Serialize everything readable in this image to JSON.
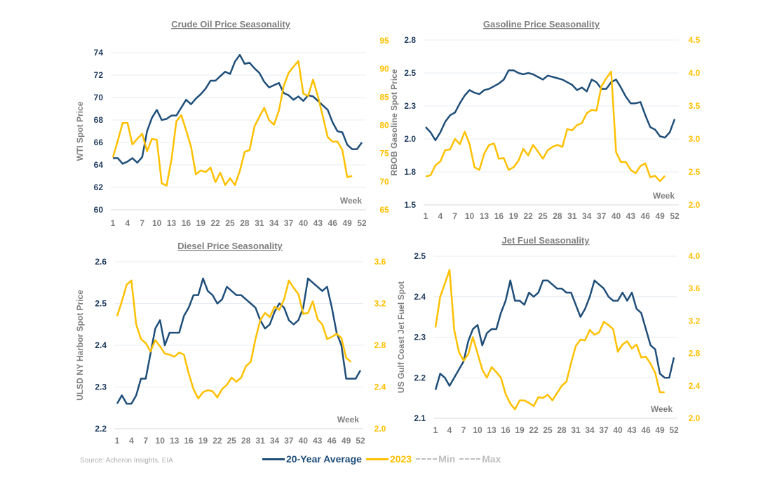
{
  "footer": {
    "source": "Source: Acheron Insights, EIA"
  },
  "legend": [
    {
      "label": "20-Year Average",
      "color": "#1f4e79",
      "style": "solid"
    },
    {
      "label": "2023",
      "color": "#ffc000",
      "style": "solid"
    },
    {
      "label": "Min",
      "color": "#bfbfbf",
      "style": "dashed"
    },
    {
      "label": "Max",
      "color": "#bfbfbf",
      "style": "dashed"
    }
  ],
  "chart_data": [
    {
      "type": "line",
      "title": "Crude Oil Price Seasonality",
      "ylabel": "WTI Spot Price",
      "ylabel_right": "",
      "xlabel": "Week",
      "x_ticks": [
        "1",
        "4",
        "7",
        "10",
        "13",
        "16",
        "19",
        "22",
        "25",
        "28",
        "31",
        "34",
        "37",
        "40",
        "43",
        "46",
        "49",
        "52"
      ],
      "ylim": [
        60,
        74
      ],
      "y_ticks": [
        "60",
        "62",
        "64",
        "66",
        "68",
        "70",
        "72",
        "74"
      ],
      "y_tick_values": [
        60,
        62,
        64,
        66,
        68,
        70,
        72,
        74
      ],
      "ylim_right": [
        65,
        95
      ],
      "y_ticks_right": [
        "65",
        "70",
        "75",
        "80",
        "85",
        "90",
        "95"
      ],
      "y_tick_values_right": [
        65,
        70,
        75,
        80,
        85,
        90,
        95
      ],
      "grid": true,
      "series": [
        {
          "name": "20-Year Average",
          "axis": "left",
          "values": [
            64.6,
            64.6,
            64.1,
            64.3,
            64.6,
            64.2,
            64.7,
            67.0,
            68.2,
            68.9,
            68.0,
            68.1,
            68.4,
            68.4,
            69.1,
            69.8,
            69.4,
            69.9,
            70.3,
            70.8,
            71.5,
            71.5,
            71.9,
            72.3,
            72.1,
            73.2,
            73.8,
            73.0,
            73.1,
            72.6,
            72.2,
            71.4,
            70.9,
            71.1,
            71.3,
            70.4,
            70.2,
            69.8,
            70.1,
            69.7,
            70.2,
            70.1,
            69.7,
            69.3,
            68.9,
            67.8,
            67.0,
            66.9,
            65.8,
            65.4,
            65.4,
            66.0
          ]
        },
        {
          "name": "2023",
          "axis": "right",
          "values": [
            74.3,
            77.3,
            80.4,
            80.4,
            76.6,
            77.6,
            78.5,
            75.4,
            77.6,
            77.4,
            69.7,
            69.3,
            73.9,
            80.7,
            81.8,
            79.1,
            76.2,
            71.3,
            72.0,
            71.7,
            72.5,
            69.9,
            71.6,
            69.4,
            70.6,
            69.4,
            71.9,
            75.3,
            75.6,
            79.8,
            81.5,
            83.1,
            80.9,
            80.1,
            82.6,
            87.0,
            89.3,
            90.4,
            91.4,
            85.6,
            85.2,
            88.1,
            85.1,
            81.6,
            77.9,
            77.1,
            77.1,
            75.6,
            70.8,
            71.0
          ]
        }
      ]
    },
    {
      "type": "line",
      "title": "Gasoline Price Seasonality",
      "ylabel": "RBOB Gasoline Spot Price",
      "ylabel_right": "",
      "xlabel": "Week",
      "x_ticks": [
        "1",
        "4",
        "7",
        "10",
        "13",
        "16",
        "19",
        "22",
        "25",
        "28",
        "31",
        "34",
        "37",
        "40",
        "43",
        "46",
        "49",
        "52"
      ],
      "ylim": [
        1.5,
        2.75
      ],
      "y_ticks": [
        "1.5",
        "1.8",
        "2.0",
        "2.3",
        "2.5",
        "2.8"
      ],
      "y_tick_values": [
        1.5,
        1.75,
        2.0,
        2.25,
        2.5,
        2.75
      ],
      "ylim_right": [
        2.0,
        4.5
      ],
      "y_ticks_right": [
        "2.0",
        "2.5",
        "3.0",
        "3.5",
        "4.0",
        "4.5"
      ],
      "y_tick_values_right": [
        2.0,
        2.5,
        3.0,
        3.5,
        4.0,
        4.5
      ],
      "grid": true,
      "series": [
        {
          "name": "20-Year Average",
          "axis": "left",
          "values": [
            2.09,
            2.05,
            1.99,
            2.05,
            2.13,
            2.18,
            2.2,
            2.27,
            2.33,
            2.37,
            2.35,
            2.34,
            2.37,
            2.38,
            2.4,
            2.42,
            2.45,
            2.52,
            2.52,
            2.5,
            2.49,
            2.5,
            2.49,
            2.47,
            2.45,
            2.48,
            2.47,
            2.46,
            2.45,
            2.43,
            2.41,
            2.37,
            2.39,
            2.36,
            2.45,
            2.43,
            2.38,
            2.38,
            2.43,
            2.45,
            2.39,
            2.32,
            2.27,
            2.27,
            2.28,
            2.18,
            2.09,
            2.07,
            2.02,
            2.01,
            2.05,
            2.15
          ]
        },
        {
          "name": "2023",
          "axis": "right",
          "values": [
            2.43,
            2.45,
            2.6,
            2.66,
            2.83,
            2.84,
            3.0,
            2.92,
            3.11,
            2.92,
            2.57,
            2.53,
            2.78,
            2.91,
            2.93,
            2.7,
            2.71,
            2.53,
            2.57,
            2.67,
            2.85,
            2.75,
            2.91,
            2.81,
            2.7,
            2.83,
            2.88,
            2.91,
            2.88,
            3.15,
            3.13,
            3.21,
            3.24,
            3.39,
            3.44,
            3.43,
            3.8,
            3.92,
            4.02,
            2.8,
            2.65,
            2.65,
            2.53,
            2.48,
            2.59,
            2.63,
            2.42,
            2.44,
            2.36,
            2.44
          ]
        }
      ]
    },
    {
      "type": "line",
      "title": "Diesel Price Seasonality",
      "ylabel": "ULSD NY Harbor Spot Price",
      "ylabel_right": "",
      "xlabel": "Week",
      "x_ticks": [
        "1",
        "4",
        "7",
        "10",
        "13",
        "16",
        "19",
        "22",
        "25",
        "28",
        "31",
        "34",
        "37",
        "40",
        "43",
        "46",
        "49",
        "52"
      ],
      "ylim": [
        2.2,
        2.6
      ],
      "y_ticks": [
        "2.2",
        "2.3",
        "2.4",
        "2.5",
        "2.6"
      ],
      "y_tick_values": [
        2.2,
        2.3,
        2.4,
        2.5,
        2.6
      ],
      "ylim_right": [
        2.0,
        3.6
      ],
      "y_ticks_right": [
        "2.0",
        "2.4",
        "2.8",
        "3.2",
        "3.6"
      ],
      "y_tick_values_right": [
        2.0,
        2.4,
        2.8,
        3.2,
        3.6
      ],
      "grid": true,
      "series": [
        {
          "name": "20-Year Average",
          "axis": "left",
          "values": [
            2.26,
            2.28,
            2.26,
            2.26,
            2.28,
            2.32,
            2.32,
            2.38,
            2.44,
            2.46,
            2.4,
            2.43,
            2.43,
            2.43,
            2.47,
            2.49,
            2.52,
            2.52,
            2.56,
            2.53,
            2.52,
            2.5,
            2.51,
            2.54,
            2.53,
            2.52,
            2.52,
            2.51,
            2.5,
            2.49,
            2.46,
            2.44,
            2.45,
            2.48,
            2.5,
            2.49,
            2.46,
            2.45,
            2.46,
            2.49,
            2.56,
            2.55,
            2.54,
            2.53,
            2.54,
            2.49,
            2.43,
            2.4,
            2.32,
            2.32,
            2.32,
            2.34
          ]
        },
        {
          "name": "2023",
          "axis": "right",
          "values": [
            3.08,
            3.22,
            3.38,
            3.42,
            3.0,
            2.86,
            2.82,
            2.74,
            2.85,
            2.79,
            2.72,
            2.71,
            2.69,
            2.73,
            2.71,
            2.53,
            2.38,
            2.29,
            2.35,
            2.37,
            2.36,
            2.3,
            2.38,
            2.42,
            2.49,
            2.45,
            2.49,
            2.6,
            2.64,
            2.86,
            3.04,
            3.11,
            3.07,
            3.17,
            3.14,
            3.24,
            3.42,
            3.35,
            3.29,
            3.1,
            3.11,
            3.22,
            3.05,
            3.0,
            2.86,
            2.88,
            2.91,
            2.87,
            2.68,
            2.64
          ]
        }
      ]
    },
    {
      "type": "line",
      "title": "Jet Fuel Seasonality",
      "ylabel": "US Gulf Coast Jet Fuel Spot",
      "ylabel_right": "",
      "xlabel": "Week",
      "x_ticks": [
        "1",
        "4",
        "7",
        "10",
        "13",
        "16",
        "19",
        "22",
        "25",
        "28",
        "31",
        "34",
        "37",
        "40",
        "43",
        "46",
        "49",
        "52"
      ],
      "ylim": [
        2.1,
        2.5
      ],
      "y_ticks": [
        "2.1",
        "2.2",
        "2.3",
        "2.4",
        "2.5"
      ],
      "y_tick_values": [
        2.1,
        2.2,
        2.3,
        2.4,
        2.5
      ],
      "ylim_right": [
        2.0,
        4.0
      ],
      "y_ticks_right": [
        "2.0",
        "2.4",
        "2.8",
        "3.2",
        "3.6",
        "4.0"
      ],
      "y_tick_values_right": [
        2.0,
        2.4,
        2.8,
        3.2,
        3.6,
        4.0
      ],
      "grid": true,
      "series": [
        {
          "name": "20-Year Average",
          "axis": "left",
          "values": [
            2.17,
            2.21,
            2.2,
            2.18,
            2.2,
            2.22,
            2.24,
            2.29,
            2.32,
            2.33,
            2.28,
            2.31,
            2.32,
            2.32,
            2.36,
            2.39,
            2.44,
            2.39,
            2.39,
            2.38,
            2.41,
            2.4,
            2.41,
            2.44,
            2.44,
            2.43,
            2.42,
            2.42,
            2.41,
            2.41,
            2.38,
            2.35,
            2.37,
            2.4,
            2.44,
            2.43,
            2.42,
            2.4,
            2.39,
            2.39,
            2.41,
            2.39,
            2.41,
            2.37,
            2.36,
            2.32,
            2.28,
            2.27,
            2.21,
            2.2,
            2.2,
            2.25
          ]
        },
        {
          "name": "2023",
          "axis": "right",
          "values": [
            3.12,
            3.5,
            3.66,
            3.83,
            3.09,
            2.82,
            2.71,
            2.79,
            3.0,
            2.8,
            2.6,
            2.5,
            2.63,
            2.57,
            2.5,
            2.3,
            2.18,
            2.11,
            2.22,
            2.22,
            2.19,
            2.15,
            2.26,
            2.25,
            2.29,
            2.22,
            2.31,
            2.4,
            2.45,
            2.68,
            2.89,
            2.97,
            2.96,
            3.09,
            3.03,
            3.06,
            3.19,
            3.15,
            3.1,
            2.82,
            2.91,
            2.95,
            2.86,
            2.91,
            2.75,
            2.76,
            2.67,
            2.56,
            2.32,
            2.32
          ]
        }
      ]
    }
  ]
}
